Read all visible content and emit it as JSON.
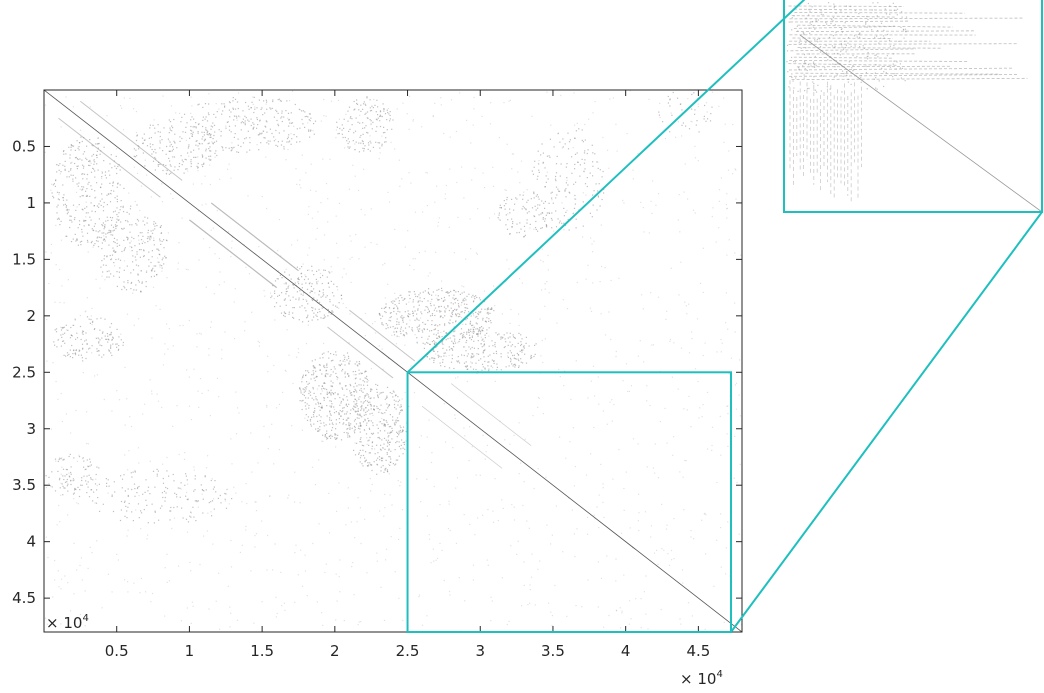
{
  "chart_data": {
    "type": "heatmap",
    "subtype": "sparsity-pattern",
    "title": "",
    "xlabel": "",
    "ylabel": "",
    "xlim": [
      0,
      48000
    ],
    "ylim": [
      0,
      48000
    ],
    "y_axis_direction": "reversed",
    "x_ticks": [
      5000,
      10000,
      15000,
      20000,
      25000,
      30000,
      35000,
      40000,
      45000
    ],
    "x_tick_labels": [
      "0.5",
      "1",
      "1.5",
      "2",
      "2.5",
      "3",
      "3.5",
      "4",
      "4.5"
    ],
    "y_ticks": [
      5000,
      10000,
      15000,
      20000,
      25000,
      30000,
      35000,
      40000,
      45000
    ],
    "y_tick_labels": [
      "0.5",
      "1",
      "1.5",
      "2",
      "2.5",
      "3",
      "3.5",
      "4",
      "4.5"
    ],
    "x_multiplier": {
      "base": "× 10",
      "exponent": "4"
    },
    "y_multiplier": {
      "base": "× 10",
      "exponent": "4"
    },
    "grid": false,
    "diagonal": {
      "from": [
        0,
        0
      ],
      "to": [
        48000,
        48000
      ]
    },
    "zoom_region": {
      "x": [
        25000,
        48000
      ],
      "y": [
        25000,
        48000
      ]
    },
    "colors": {
      "nonzero": "#8c8c8c",
      "diagonal": "#555555",
      "zoom_frame": "#1fbfbf",
      "axis": "#262626"
    }
  }
}
